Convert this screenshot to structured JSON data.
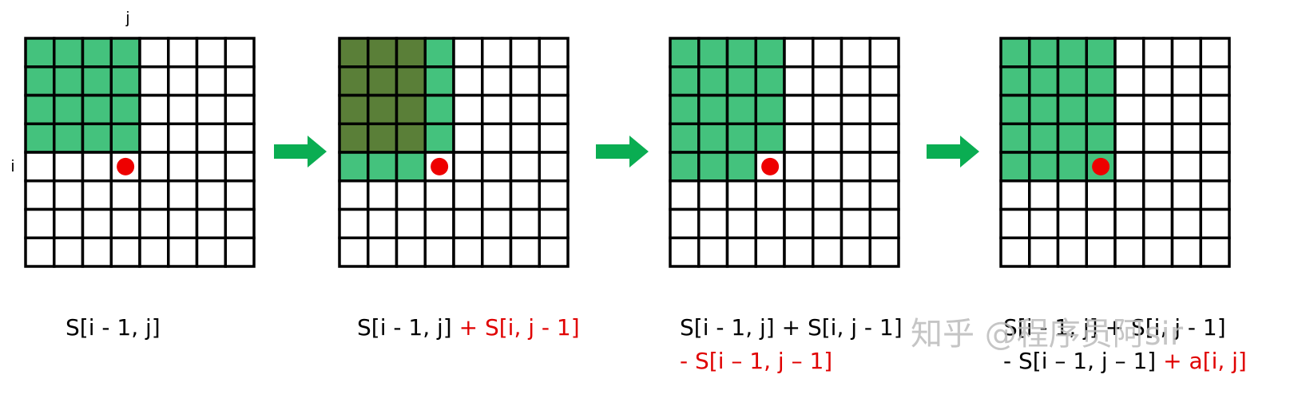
{
  "axis_labels": {
    "j": "j",
    "i": "i"
  },
  "colors": {
    "grid_line": "#000000",
    "green": "#44c27d",
    "dark_green": "#5a7f38",
    "dot": "#ee0000",
    "arrow": "#0aad52",
    "formula_red": "#e00000"
  },
  "grid": {
    "rows": 8,
    "cols": 8,
    "point": {
      "row": 4,
      "col": 3
    }
  },
  "panels": [
    {
      "green_rows": 4,
      "green_cols": 4,
      "dark_rows": 0,
      "dark_cols": 0,
      "row_i_cols": 0,
      "formula": [
        {
          "black": "S[i - 1, j]",
          "red": ""
        }
      ]
    },
    {
      "green_rows": 4,
      "green_cols": 4,
      "dark_rows": 4,
      "dark_cols": 3,
      "row_i_cols": 3,
      "formula": [
        {
          "black": "S[i - 1, j] ",
          "red": "+ S[i, j - 1]"
        }
      ]
    },
    {
      "green_rows": 4,
      "green_cols": 4,
      "dark_rows": 0,
      "dark_cols": 0,
      "row_i_cols": 3,
      "formula": [
        {
          "black": "S[i - 1, j] + S[i, j - 1]",
          "red": ""
        },
        {
          "black": "",
          "red": "- S[i – 1, j – 1]"
        }
      ]
    },
    {
      "green_rows": 4,
      "green_cols": 4,
      "dark_rows": 0,
      "dark_cols": 0,
      "row_i_cols": 4,
      "formula": [
        {
          "black": "S[i - 1, j] + S[i, j - 1]",
          "red": ""
        },
        {
          "black": "- S[i – 1, j – 1] ",
          "red": "+ a[i, j]"
        }
      ]
    }
  ],
  "watermark": "知乎 @程序员阿sir"
}
